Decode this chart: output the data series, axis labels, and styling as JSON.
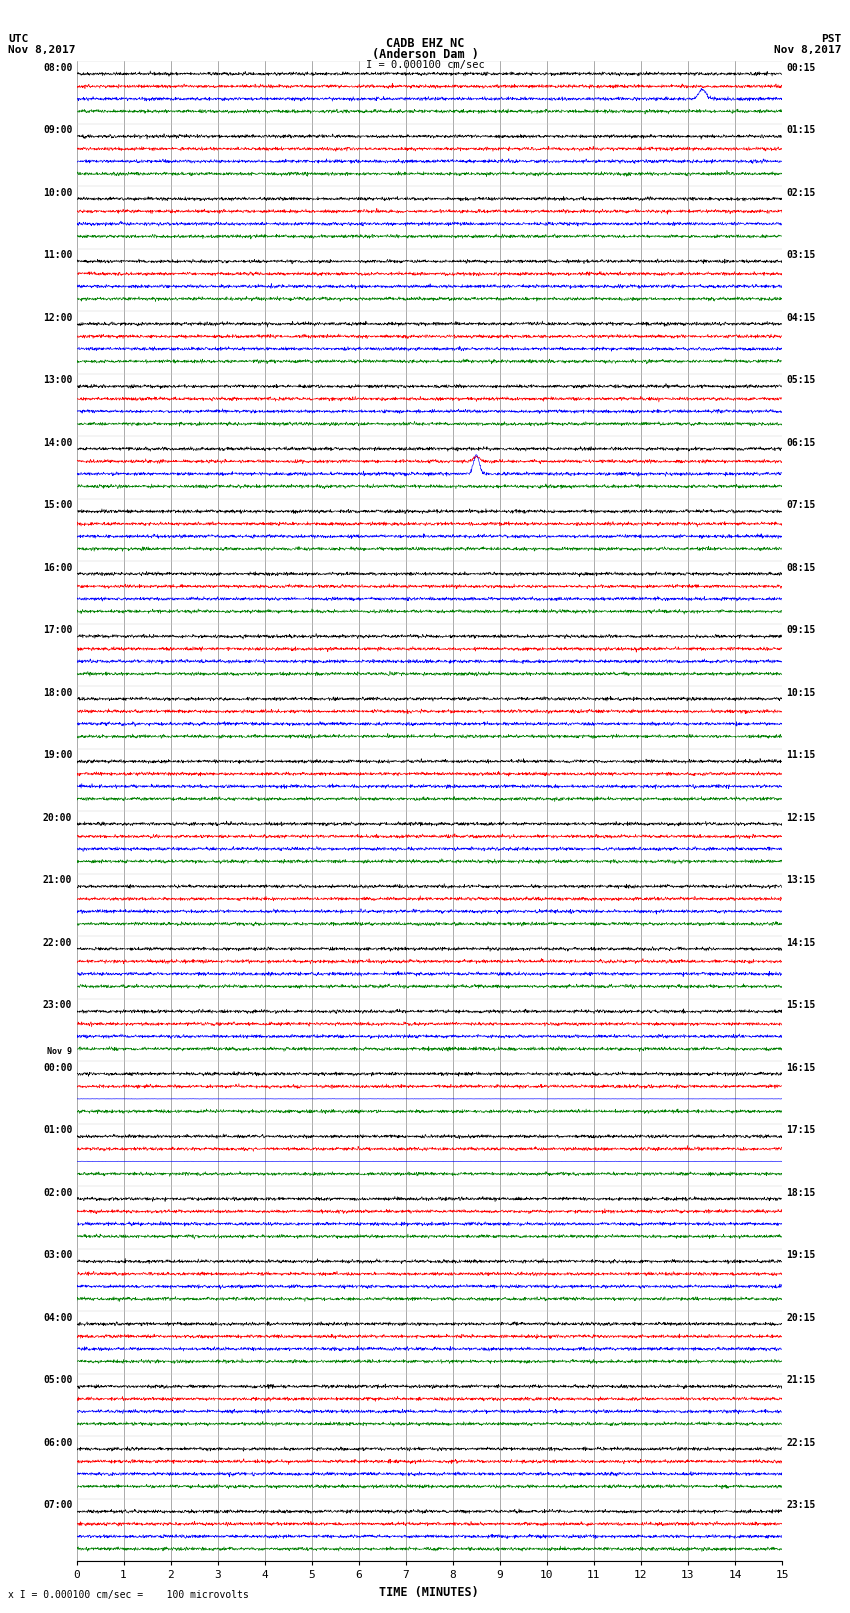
{
  "title_line1": "CADB EHZ NC",
  "title_line2": "(Anderson Dam )",
  "title_line3": "I = 0.000100 cm/sec",
  "left_header_line1": "UTC",
  "left_header_line2": "Nov 8,2017",
  "right_header_line1": "PST",
  "right_header_line2": "Nov 8,2017",
  "xlabel": "TIME (MINUTES)",
  "footer": "x I = 0.000100 cm/sec =    100 microvolts",
  "x_ticks": [
    0,
    1,
    2,
    3,
    4,
    5,
    6,
    7,
    8,
    9,
    10,
    11,
    12,
    13,
    14,
    15
  ],
  "x_lim": [
    0,
    15
  ],
  "bg_color": "#ffffff",
  "trace_colors": [
    "black",
    "red",
    "blue",
    "green"
  ],
  "n_minutes": 15,
  "left_times_utc": [
    "08:00",
    "09:00",
    "10:00",
    "11:00",
    "12:00",
    "13:00",
    "14:00",
    "15:00",
    "16:00",
    "17:00",
    "18:00",
    "19:00",
    "20:00",
    "21:00",
    "22:00",
    "23:00",
    "00:00",
    "01:00",
    "02:00",
    "03:00",
    "04:00",
    "05:00",
    "06:00",
    "07:00"
  ],
  "right_times_pst": [
    "00:15",
    "01:15",
    "02:15",
    "03:15",
    "04:15",
    "05:15",
    "06:15",
    "07:15",
    "08:15",
    "09:15",
    "10:15",
    "11:15",
    "12:15",
    "13:15",
    "14:15",
    "15:15",
    "16:15",
    "17:15",
    "18:15",
    "19:15",
    "20:15",
    "21:15",
    "22:15",
    "23:15"
  ],
  "n_rows": 24,
  "traces_per_row": 4,
  "noise_amp": 0.012,
  "special_row_blue_flat": [
    16,
    17
  ],
  "special_row_event_col": 6,
  "special_event_time": 8.5,
  "event_amp": 0.3,
  "event_row_spike": 0,
  "event_spike_time": 13.3,
  "event_spike_amp": 0.15,
  "nov9_row": 16
}
